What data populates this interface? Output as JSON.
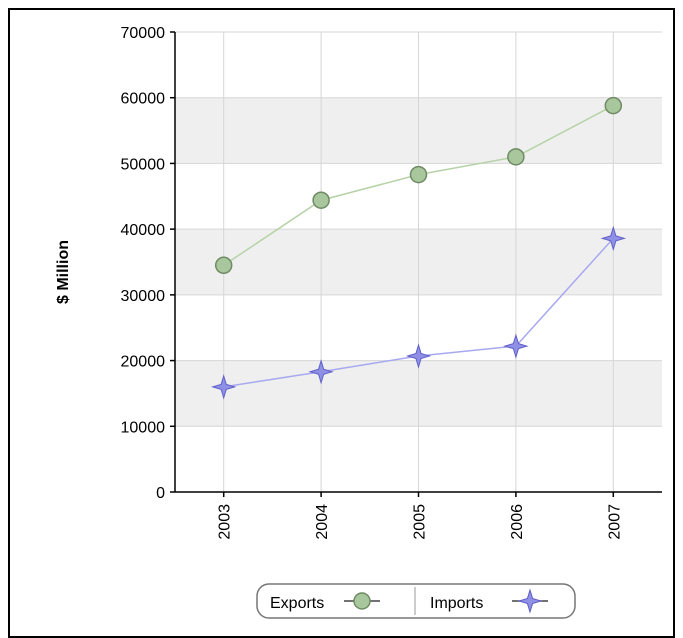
{
  "chart_data": {
    "type": "line",
    "title": "",
    "xlabel": "",
    "ylabel": "$ Million",
    "x": [
      "2003",
      "2004",
      "2005",
      "2006",
      "2007"
    ],
    "ylim": [
      0,
      70000
    ],
    "yticks": [
      0,
      10000,
      20000,
      30000,
      40000,
      50000,
      60000,
      70000
    ],
    "grid": true,
    "legend_position": "bottom",
    "series": [
      {
        "name": "Exports",
        "values": [
          34500,
          44400,
          48300,
          51000,
          58800
        ],
        "color": "#a9c79c",
        "line_color": "#b5d3a6",
        "marker": "circle"
      },
      {
        "name": "Imports",
        "values": [
          16000,
          18300,
          20700,
          22200,
          38600
        ],
        "color": "#8f8fe6",
        "line_color": "#a8a8f0",
        "marker": "star"
      }
    ]
  }
}
